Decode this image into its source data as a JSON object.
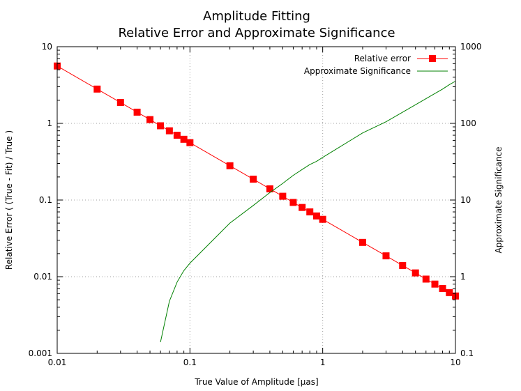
{
  "chart_data": {
    "type": "line",
    "title": "Amplitude Fitting",
    "subtitle": "Relative Error and Approximate Significance",
    "xlabel": "True Value of Amplitude [μas]",
    "ylabel": "Relative Error ( (True - Fit) / True )",
    "y2label": "Approximate Significance",
    "x_scale": "log",
    "y_scale": "log",
    "y2_scale": "log",
    "xlim": [
      0.01,
      10
    ],
    "ylim": [
      0.001,
      10
    ],
    "y2lim": [
      0.1,
      1000
    ],
    "grid": true,
    "legend_position": "top-right",
    "x_ticks": [
      "0.01",
      "0.1",
      "1",
      "10"
    ],
    "y_ticks": [
      "0.001",
      "0.01",
      "0.1",
      "1",
      "10"
    ],
    "y2_ticks": [
      "0.1",
      "1",
      "10",
      "100",
      "1000"
    ],
    "series": [
      {
        "name": "Relative error",
        "axis": "left",
        "color": "#ff0000",
        "marker": "square",
        "x": [
          0.01,
          0.02,
          0.03,
          0.04,
          0.05,
          0.06,
          0.07,
          0.08,
          0.09,
          0.1,
          0.2,
          0.3,
          0.4,
          0.5,
          0.6,
          0.7,
          0.8,
          0.9,
          1,
          2,
          3,
          4,
          5,
          6,
          7,
          8,
          9,
          10
        ],
        "y": [
          5.6,
          2.8,
          1.87,
          1.4,
          1.12,
          0.93,
          0.8,
          0.7,
          0.62,
          0.56,
          0.28,
          0.187,
          0.14,
          0.112,
          0.093,
          0.08,
          0.07,
          0.062,
          0.056,
          0.028,
          0.0187,
          0.014,
          0.0112,
          0.0093,
          0.008,
          0.007,
          0.0062,
          0.0056
        ]
      },
      {
        "name": "Approximate Significance",
        "axis": "right",
        "color": "#008000",
        "marker": "none",
        "x": [
          0.06,
          0.07,
          0.08,
          0.09,
          0.1,
          0.2,
          0.3,
          0.4,
          0.5,
          0.6,
          0.7,
          0.8,
          0.9,
          1,
          2,
          3,
          4,
          5,
          6,
          7,
          8,
          9,
          10
        ],
        "y": [
          0.14,
          0.48,
          0.85,
          1.2,
          1.5,
          5.0,
          8.5,
          12.5,
          16.5,
          21,
          25,
          29,
          32,
          36,
          75,
          105,
          140,
          175,
          210,
          245,
          280,
          320,
          355
        ]
      }
    ]
  }
}
